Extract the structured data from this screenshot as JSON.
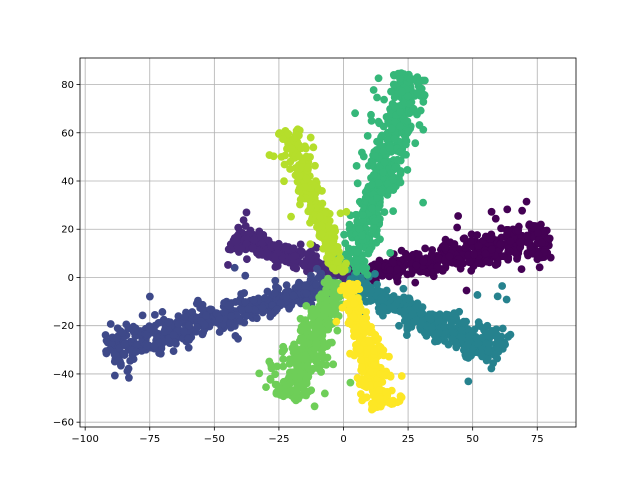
{
  "chart_data": {
    "type": "scatter",
    "title": "",
    "xlabel": "",
    "ylabel": "",
    "xlim": [
      -102,
      90
    ],
    "ylim": [
      -62,
      91
    ],
    "xticks": [
      -100,
      -75,
      -50,
      -25,
      0,
      25,
      50,
      75
    ],
    "yticks": [
      -60,
      -40,
      -20,
      0,
      20,
      40,
      60,
      80
    ],
    "xtick_labels": [
      "−100",
      "−75",
      "−50",
      "−25",
      "0",
      "25",
      "50",
      "75"
    ],
    "ytick_labels": [
      "−60",
      "−40",
      "−20",
      "0",
      "20",
      "40",
      "60",
      "80"
    ],
    "grid": true,
    "legend": "none",
    "colormap": "viridis",
    "series": [
      {
        "color": "#440154",
        "points_per_arm": 420,
        "arm": {
          "start": [
            2,
            0
          ],
          "end": [
            80,
            17
          ],
          "width": 3.2
        }
      },
      {
        "color": "#482878",
        "points_per_arm": 300,
        "arm": {
          "start": [
            2,
            1
          ],
          "end": [
            -43,
            17
          ],
          "width": 2.4
        }
      },
      {
        "color": "#3e4989",
        "points_per_arm": 500,
        "arm": {
          "start": [
            -3,
            -2
          ],
          "end": [
            -92,
            -31
          ],
          "width": 3.6
        }
      },
      {
        "color": "#26828e",
        "points_per_arm": 420,
        "arm": {
          "start": [
            2,
            -2
          ],
          "end": [
            61,
            -32
          ],
          "width": 3.4
        }
      },
      {
        "color": "#35b779",
        "points_per_arm": 450,
        "arm": {
          "start": [
            4,
            2
          ],
          "end": [
            26,
            84
          ],
          "width": 3.8
        }
      },
      {
        "color": "#6ece58",
        "points_per_arm": 380,
        "arm": {
          "start": [
            -2,
            -2
          ],
          "end": [
            -22,
            -50
          ],
          "width": 3.6
        }
      },
      {
        "color": "#b5de2b",
        "points_per_arm": 300,
        "arm": {
          "start": [
            -1,
            2
          ],
          "end": [
            -22,
            61
          ],
          "width": 2.2
        }
      },
      {
        "color": "#fde725",
        "points_per_arm": 320,
        "arm": {
          "start": [
            2,
            -2
          ],
          "end": [
            15,
            -54
          ],
          "width": 2.6
        }
      }
    ]
  }
}
